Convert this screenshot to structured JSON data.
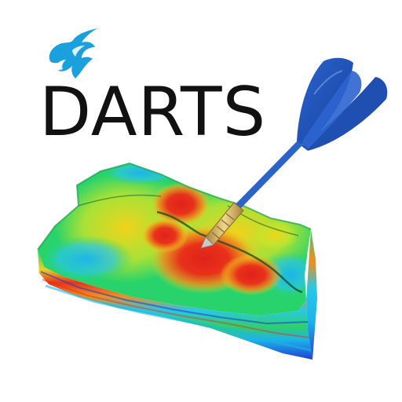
{
  "logo": {
    "wordmark": "DARTS",
    "wordmark_color": "#111111",
    "flame_icon": "flame-icon",
    "flame_color": "#1aa0dc",
    "dart_icon": "dart-icon",
    "dart_flight_color": "#1f4fb0",
    "dart_shaft_color": "#2b63c8",
    "dart_barrel_color": "#d9b45a",
    "reservoir_icon": "reservoir-block-icon",
    "reservoir_colors": [
      "#1e3fd6",
      "#1db4e8",
      "#29d36b",
      "#c8e52a",
      "#f2d21b",
      "#f28a1c",
      "#e0221a"
    ]
  }
}
